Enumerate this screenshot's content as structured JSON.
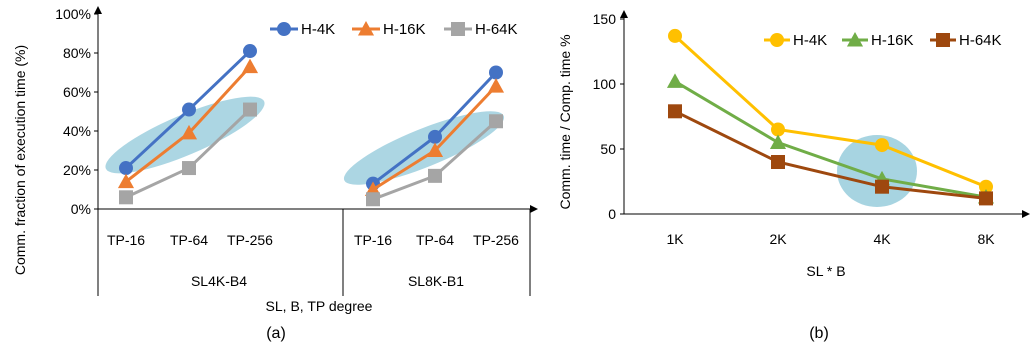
{
  "chart_data": [
    {
      "type": "line",
      "panel_caption": "(a)",
      "ylabel": "Comm. fraction of execution time (%)",
      "xlabel": "SL, B, TP degree",
      "ylim": [
        0,
        100
      ],
      "yticks": [
        "0%",
        "20%",
        "40%",
        "60%",
        "80%",
        "100%"
      ],
      "groups": [
        {
          "label": "SL4K-B4",
          "categories": [
            "TP-16",
            "TP-64",
            "TP-256"
          ]
        },
        {
          "label": "SL8K-B1",
          "categories": [
            "TP-16",
            "TP-64",
            "TP-256"
          ]
        }
      ],
      "series": [
        {
          "name": "H-4K",
          "color": "#4472C4",
          "marker": "circle",
          "groups": [
            [
              21,
              51,
              81
            ],
            [
              13,
              37,
              70
            ]
          ]
        },
        {
          "name": "H-16K",
          "color": "#ED7D31",
          "marker": "triangle",
          "groups": [
            [
              14,
              39,
              73
            ],
            [
              10,
              30,
              63
            ]
          ]
        },
        {
          "name": "H-64K",
          "color": "#A5A5A5",
          "marker": "square",
          "groups": [
            [
              6,
              21,
              51
            ],
            [
              5,
              17,
              45
            ]
          ]
        }
      ],
      "highlight_color": "#9DCFDE",
      "legend": "top-right"
    },
    {
      "type": "line",
      "panel_caption": "(b)",
      "ylabel": "Comm. time / Comp. time %",
      "xlabel": "SL * B",
      "ylim": [
        0,
        150
      ],
      "yticks": [
        "0",
        "50",
        "100",
        "150"
      ],
      "categories": [
        "1K",
        "2K",
        "4K",
        "8K"
      ],
      "series": [
        {
          "name": "H-4K",
          "color": "#FFC000",
          "marker": "circle",
          "values": [
            137,
            65,
            53,
            21
          ]
        },
        {
          "name": "H-16K",
          "color": "#70AD47",
          "marker": "triangle",
          "values": [
            102,
            55,
            27,
            13
          ]
        },
        {
          "name": "H-64K",
          "color": "#9E480E",
          "marker": "square",
          "values": [
            79,
            40,
            21,
            12
          ]
        }
      ],
      "highlight_color": "#9DCFDE",
      "legend": "top-right"
    }
  ]
}
